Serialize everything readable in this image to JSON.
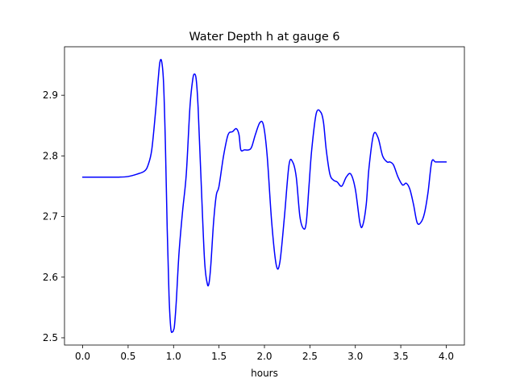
{
  "chart_data": {
    "type": "line",
    "title": "Water Depth h at gauge 6",
    "xlabel": "hours",
    "ylabel": "",
    "xlim": [
      -0.2,
      4.2
    ],
    "ylim": [
      2.488,
      2.98
    ],
    "x_ticks": [
      0.0,
      0.5,
      1.0,
      1.5,
      2.0,
      2.5,
      3.0,
      3.5,
      4.0
    ],
    "x_tick_labels": [
      "0.0",
      "0.5",
      "1.0",
      "1.5",
      "2.0",
      "2.5",
      "3.0",
      "3.5",
      "4.0"
    ],
    "y_ticks": [
      2.5,
      2.6,
      2.7,
      2.8,
      2.9
    ],
    "y_tick_labels": [
      "2.5",
      "2.6",
      "2.7",
      "2.8",
      "2.9"
    ],
    "grid": false,
    "series": [
      {
        "color": "#0000ff",
        "x": [
          0.0,
          0.2,
          0.4,
          0.5,
          0.6,
          0.68,
          0.72,
          0.76,
          0.8,
          0.83,
          0.85,
          0.87,
          0.89,
          0.91,
          0.93,
          0.95,
          0.97,
          0.99,
          1.0,
          1.01,
          1.03,
          1.06,
          1.1,
          1.14,
          1.18,
          1.21,
          1.23,
          1.25,
          1.27,
          1.3,
          1.34,
          1.37,
          1.39,
          1.41,
          1.44,
          1.47,
          1.5,
          1.55,
          1.6,
          1.65,
          1.69,
          1.72,
          1.74,
          1.78,
          1.83,
          1.86,
          1.9,
          1.95,
          1.99,
          2.03,
          2.08,
          2.13,
          2.17,
          2.22,
          2.27,
          2.31,
          2.35,
          2.39,
          2.43,
          2.46,
          2.49,
          2.52,
          2.57,
          2.62,
          2.65,
          2.68,
          2.72,
          2.76,
          2.8,
          2.85,
          2.9,
          2.95,
          3.0,
          3.05,
          3.08,
          3.12,
          3.15,
          3.2,
          3.25,
          3.3,
          3.35,
          3.38,
          3.42,
          3.47,
          3.52,
          3.56,
          3.6,
          3.64,
          3.68,
          3.72,
          3.76,
          3.8,
          3.84,
          3.88,
          3.92,
          3.96,
          4.0
        ],
        "y": [
          2.765,
          2.765,
          2.765,
          2.766,
          2.77,
          2.775,
          2.785,
          2.81,
          2.87,
          2.925,
          2.955,
          2.955,
          2.92,
          2.82,
          2.68,
          2.57,
          2.515,
          2.51,
          2.513,
          2.52,
          2.56,
          2.64,
          2.71,
          2.77,
          2.88,
          2.925,
          2.935,
          2.925,
          2.88,
          2.77,
          2.63,
          2.59,
          2.59,
          2.62,
          2.69,
          2.735,
          2.75,
          2.8,
          2.835,
          2.84,
          2.845,
          2.835,
          2.81,
          2.81,
          2.81,
          2.815,
          2.835,
          2.855,
          2.85,
          2.8,
          2.69,
          2.62,
          2.625,
          2.7,
          2.785,
          2.79,
          2.765,
          2.7,
          2.68,
          2.69,
          2.75,
          2.81,
          2.87,
          2.872,
          2.855,
          2.81,
          2.77,
          2.76,
          2.757,
          2.75,
          2.765,
          2.77,
          2.745,
          2.69,
          2.685,
          2.72,
          2.78,
          2.835,
          2.83,
          2.8,
          2.79,
          2.79,
          2.785,
          2.765,
          2.752,
          2.755,
          2.745,
          2.72,
          2.69,
          2.69,
          2.705,
          2.74,
          2.79,
          2.79,
          2.79,
          2.79,
          2.79
        ]
      }
    ]
  }
}
